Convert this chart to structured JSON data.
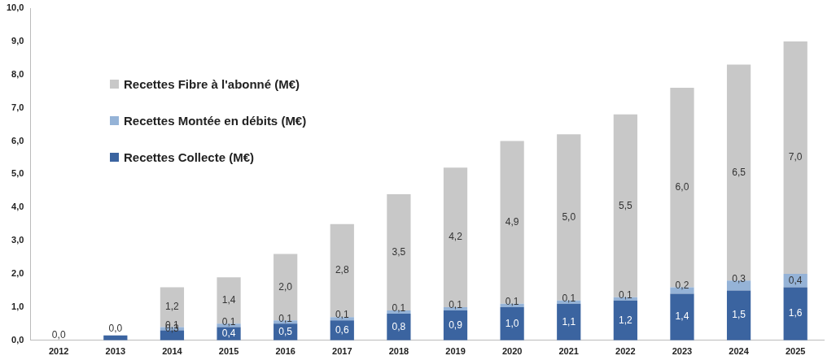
{
  "chart_data": {
    "type": "bar",
    "stacked": true,
    "categories": [
      "2012",
      "2013",
      "2014",
      "2015",
      "2016",
      "2017",
      "2018",
      "2019",
      "2020",
      "2021",
      "2022",
      "2023",
      "2024",
      "2025"
    ],
    "series": [
      {
        "name": "Recettes Collecte (M€)",
        "color": "#3b64a0",
        "values": [
          0,
          0.15,
          0.3,
          0.4,
          0.5,
          0.6,
          0.8,
          0.9,
          1.0,
          1.1,
          1.2,
          1.4,
          1.5,
          1.6
        ],
        "value_labels": [
          "0,0",
          null,
          "0,3",
          "0,4",
          "0,5",
          "0,6",
          "0,8",
          "0,9",
          "1,0",
          "1,1",
          "1,2",
          "1,4",
          "1,5",
          "1,6"
        ]
      },
      {
        "name": "Recettes Montée en débits (M€)",
        "color": "#95b3d7",
        "values": [
          0,
          0,
          0.1,
          0.1,
          0.1,
          0.1,
          0.1,
          0.1,
          0.1,
          0.1,
          0.1,
          0.2,
          0.3,
          0.4
        ],
        "value_labels": [
          null,
          null,
          "0,1",
          "0,1",
          "0,1",
          "0,1",
          "0,1",
          "0,1",
          "0,1",
          "0,1",
          "0,1",
          "0,2",
          "0,3",
          "0,4"
        ]
      },
      {
        "name": "Recettes Fibre à l'abonné (M€)",
        "color": "#c8c8c8",
        "values": [
          0,
          0,
          1.2,
          1.4,
          2.0,
          2.8,
          3.5,
          4.2,
          4.9,
          5.0,
          5.5,
          6.0,
          6.5,
          7.0
        ],
        "value_labels": [
          null,
          "0,0",
          "1,2",
          "1,4",
          "2,0",
          "2,8",
          "3,5",
          "4,2",
          "4,9",
          "5,0",
          "5,5",
          "6,0",
          "6,5",
          "7,0"
        ]
      }
    ],
    "ylim": [
      0,
      10
    ],
    "yticks": [
      {
        "value": 0,
        "label": "0,0"
      },
      {
        "value": 1,
        "label": "1,0"
      },
      {
        "value": 2,
        "label": "2,0"
      },
      {
        "value": 3,
        "label": "3,0"
      },
      {
        "value": 4,
        "label": "4,0"
      },
      {
        "value": 5,
        "label": "5,0"
      },
      {
        "value": 6,
        "label": "6,0"
      },
      {
        "value": 7,
        "label": "7,0"
      },
      {
        "value": 8,
        "label": "8,0"
      },
      {
        "value": 9,
        "label": "9,0"
      },
      {
        "value": 10,
        "label": "10,0"
      }
    ],
    "grid": false,
    "legend": "top left"
  }
}
